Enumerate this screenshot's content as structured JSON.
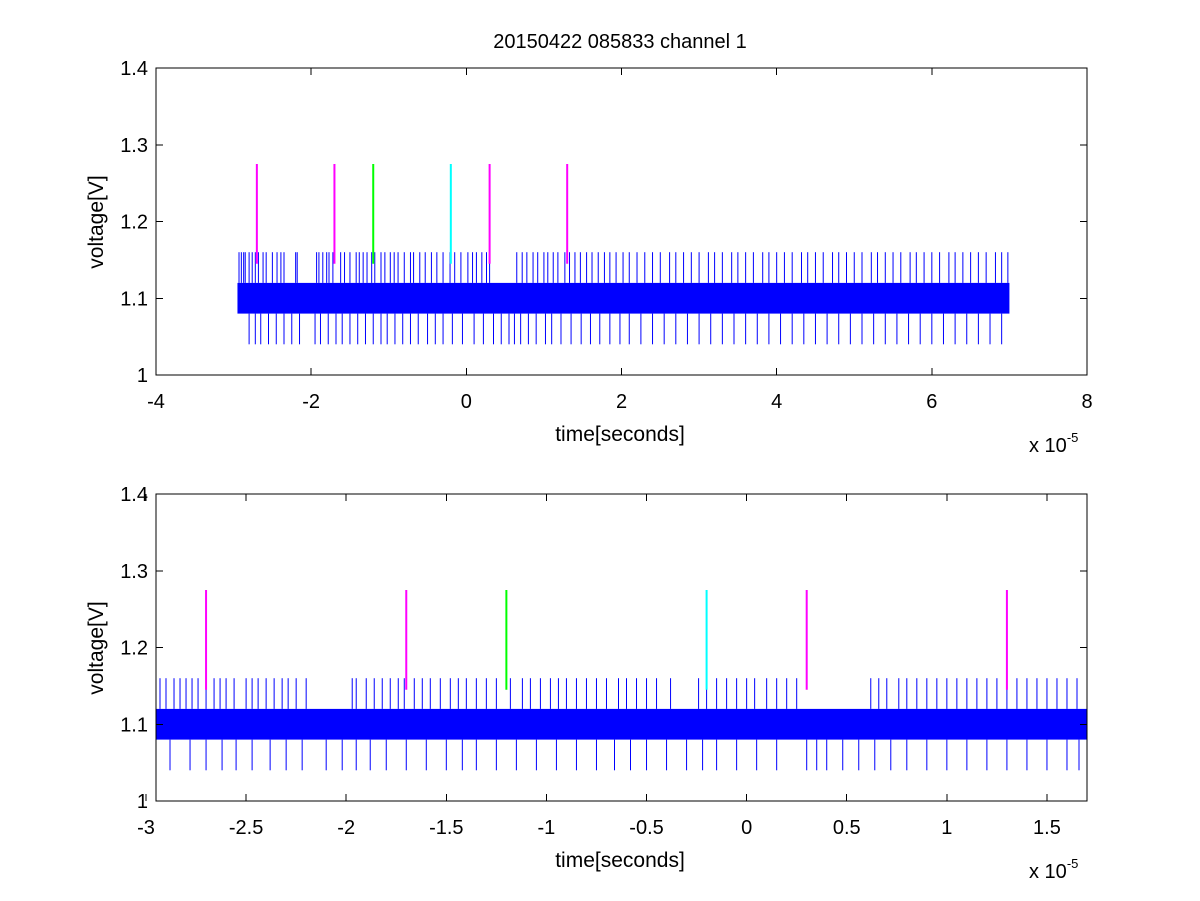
{
  "title": "20150422 085833 channel 1",
  "chart_data": [
    {
      "type": "line",
      "title": "20150422 085833 channel 1",
      "xlabel": "time[seconds]",
      "ylabel": "voltage[V]",
      "x_multiplier": "x 10",
      "x_multiplier_exp": "-5",
      "xlim": [
        -4e-05,
        8e-05
      ],
      "ylim": [
        1.0,
        1.4
      ],
      "xticks": [
        -4,
        -2,
        0,
        2,
        4,
        6,
        8
      ],
      "xtick_labels": [
        "-4",
        "-2",
        "0",
        "2",
        "4",
        "6",
        "8"
      ],
      "yticks": [
        1.0,
        1.1,
        1.2,
        1.3,
        1.4
      ],
      "ytick_labels": [
        "1",
        "1.1",
        "1.2",
        "1.3",
        "1.4"
      ],
      "series": [
        {
          "color": "#0000ff",
          "x_range": [
            -2.95e-05,
            7e-05
          ],
          "levels": [
            1.04,
            1.08,
            1.12,
            1.16
          ],
          "main_band": [
            1.08,
            1.12
          ],
          "upper_spikes": [
            -2.93,
            -2.9,
            -2.87,
            -2.85,
            -2.8,
            -2.76,
            -2.72,
            -2.68,
            -2.62,
            -2.58,
            -2.5,
            -2.44,
            -2.39,
            -2.35,
            -2.2,
            -2.18,
            -1.93,
            -1.9,
            -1.85,
            -1.8,
            -1.77,
            -1.72,
            -1.62,
            -1.57,
            -1.5,
            -1.42,
            -1.38,
            -1.33,
            -1.28,
            -1.22,
            -1.18,
            -1.1,
            -1.05,
            -0.98,
            -0.93,
            -0.88,
            -0.8,
            -0.72,
            -0.68,
            -0.6,
            -0.53,
            -0.45,
            -0.38,
            -0.3,
            -0.21,
            -0.15,
            -0.07,
            0.02,
            0.08,
            0.13,
            0.2,
            0.26,
            0.3,
            0.65,
            0.72,
            0.78,
            0.86,
            0.92,
            1.0,
            1.05,
            1.12,
            1.18,
            1.27,
            1.33,
            1.4,
            1.47,
            1.55,
            1.62,
            1.7,
            1.78,
            1.85,
            1.93,
            2.02,
            2.1,
            2.2,
            2.3,
            2.4,
            2.5,
            2.62,
            2.7,
            2.8,
            2.9,
            3.0,
            3.12,
            3.2,
            3.3,
            3.42,
            3.5,
            3.6,
            3.7,
            3.82,
            3.9,
            4.0,
            4.1,
            4.2,
            4.32,
            4.4,
            4.5,
            4.6,
            4.72,
            4.8,
            4.9,
            5.0,
            5.1,
            5.22,
            5.3,
            5.4,
            5.5,
            5.6,
            5.72,
            5.8,
            5.9,
            6.0,
            6.1,
            6.22,
            6.3,
            6.4,
            6.5,
            6.6,
            6.7,
            6.82,
            6.9,
            6.98
          ],
          "lower_spikes": [
            -2.8,
            -2.72,
            -2.65,
            -2.55,
            -2.45,
            -2.35,
            -2.25,
            -2.15,
            -1.95,
            -1.88,
            -1.78,
            -1.68,
            -1.6,
            -1.5,
            -1.4,
            -1.3,
            -1.2,
            -1.1,
            -1.02,
            -0.92,
            -0.82,
            -0.72,
            -0.62,
            -0.5,
            -0.4,
            -0.3,
            -0.18,
            -0.05,
            0.1,
            0.22,
            0.35,
            0.45,
            0.55,
            0.62,
            0.7,
            0.8,
            0.9,
            1.02,
            1.1,
            1.22,
            1.35,
            1.48,
            1.6,
            1.72,
            1.85,
            1.98,
            2.1,
            2.25,
            2.4,
            2.55,
            2.7,
            2.85,
            3.0,
            3.15,
            3.3,
            3.45,
            3.6,
            3.75,
            3.9,
            4.05,
            4.2,
            4.35,
            4.5,
            4.65,
            4.8,
            4.95,
            5.1,
            5.25,
            5.4,
            5.55,
            5.7,
            5.85,
            6.0,
            6.15,
            6.3,
            6.45,
            6.6,
            6.75,
            6.9
          ]
        }
      ],
      "markers": [
        {
          "x": -2.7e-05,
          "color": "#ff00ff",
          "y_range": [
            1.145,
            1.275
          ]
        },
        {
          "x": -1.7e-05,
          "color": "#ff00ff",
          "y_range": [
            1.145,
            1.275
          ]
        },
        {
          "x": -1.2e-05,
          "color": "#00ff00",
          "y_range": [
            1.145,
            1.275
          ]
        },
        {
          "x": -2e-06,
          "color": "#00ffff",
          "y_range": [
            1.145,
            1.275
          ]
        },
        {
          "x": 3e-06,
          "color": "#ff00ff",
          "y_range": [
            1.145,
            1.275
          ]
        },
        {
          "x": 1.3e-05,
          "color": "#ff00ff",
          "y_range": [
            1.145,
            1.275
          ]
        }
      ]
    },
    {
      "type": "line",
      "title": "",
      "xlabel": "time[seconds]",
      "ylabel": "voltage[V]",
      "x_multiplier": "x 10",
      "x_multiplier_exp": "-5",
      "xlim": [
        -2.95e-05,
        1.7e-05
      ],
      "ylim": [
        1.0,
        1.4
      ],
      "xticks": [
        -3,
        -2.5,
        -2,
        -1.5,
        -1,
        -0.5,
        0,
        0.5,
        1,
        1.5
      ],
      "xtick_labels": [
        "-3",
        "-2.5",
        "-2",
        "-1.5",
        "-1",
        "-0.5",
        "0",
        "0.5",
        "1",
        "1.5"
      ],
      "yticks": [
        1.0,
        1.1,
        1.2,
        1.3,
        1.4
      ],
      "ytick_labels": [
        "1",
        "1.1",
        "1.2",
        "1.3",
        "1.4"
      ],
      "series": [
        {
          "color": "#0000ff",
          "x_range": [
            -2.95e-05,
            1.7e-05
          ],
          "levels": [
            1.04,
            1.08,
            1.12,
            1.16
          ],
          "main_band": [
            1.08,
            1.12
          ],
          "upper_spikes": [
            -2.93,
            -2.9,
            -2.86,
            -2.83,
            -2.8,
            -2.77,
            -2.74,
            -2.7,
            -2.66,
            -2.63,
            -2.6,
            -2.56,
            -2.5,
            -2.47,
            -2.44,
            -2.4,
            -2.36,
            -2.32,
            -2.29,
            -2.25,
            -2.2,
            -1.97,
            -1.95,
            -1.9,
            -1.86,
            -1.82,
            -1.78,
            -1.74,
            -1.71,
            -1.66,
            -1.62,
            -1.58,
            -1.53,
            -1.48,
            -1.44,
            -1.4,
            -1.35,
            -1.3,
            -1.25,
            -1.18,
            -1.12,
            -1.08,
            -1.03,
            -0.98,
            -0.94,
            -0.9,
            -0.85,
            -0.8,
            -0.75,
            -0.7,
            -0.64,
            -0.6,
            -0.55,
            -0.5,
            -0.45,
            -0.38,
            -0.24,
            -0.2,
            -0.15,
            -0.1,
            -0.05,
            0.0,
            0.04,
            0.1,
            0.15,
            0.2,
            0.25,
            0.62,
            0.66,
            0.7,
            0.76,
            0.8,
            0.85,
            0.9,
            0.95,
            1.0,
            1.05,
            1.1,
            1.15,
            1.2,
            1.25,
            1.3,
            1.35,
            1.4,
            1.45,
            1.5,
            1.55,
            1.6,
            1.65
          ],
          "lower_spikes": [
            -2.88,
            -2.78,
            -2.7,
            -2.62,
            -2.55,
            -2.47,
            -2.38,
            -2.3,
            -2.22,
            -2.1,
            -2.02,
            -1.95,
            -1.88,
            -1.8,
            -1.7,
            -1.6,
            -1.5,
            -1.42,
            -1.35,
            -1.25,
            -1.15,
            -1.05,
            -0.95,
            -0.85,
            -0.75,
            -0.66,
            -0.58,
            -0.5,
            -0.4,
            -0.3,
            -0.22,
            -0.15,
            -0.05,
            0.05,
            0.15,
            0.3,
            0.35,
            0.4,
            0.48,
            0.56,
            0.64,
            0.72,
            0.8,
            0.9,
            1.0,
            1.1,
            1.2,
            1.3,
            1.4,
            1.5,
            1.6,
            1.66
          ]
        }
      ],
      "markers": [
        {
          "x": -2.7e-05,
          "color": "#ff00ff",
          "y_range": [
            1.145,
            1.275
          ]
        },
        {
          "x": -1.7e-05,
          "color": "#ff00ff",
          "y_range": [
            1.145,
            1.275
          ]
        },
        {
          "x": -1.2e-05,
          "color": "#00ff00",
          "y_range": [
            1.145,
            1.275
          ]
        },
        {
          "x": -2e-06,
          "color": "#00ffff",
          "y_range": [
            1.145,
            1.275
          ]
        },
        {
          "x": 3e-06,
          "color": "#ff00ff",
          "y_range": [
            1.145,
            1.275
          ]
        },
        {
          "x": 1.3e-05,
          "color": "#ff00ff",
          "y_range": [
            1.145,
            1.275
          ]
        }
      ]
    }
  ]
}
